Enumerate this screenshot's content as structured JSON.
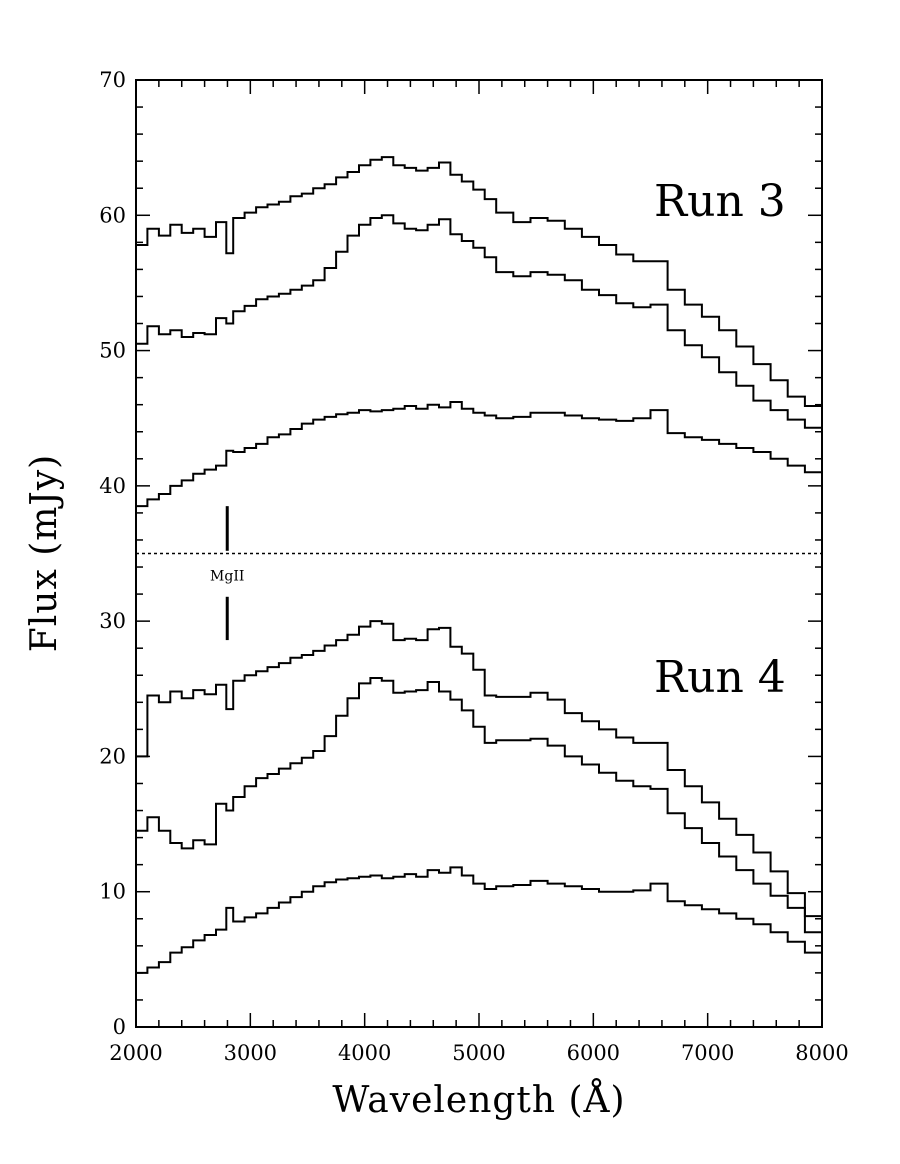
{
  "chart_data": {
    "type": "line",
    "xlabel": "Wavelength (Å)",
    "ylabel": "Flux (mJy)",
    "xlim": [
      2000,
      8000
    ],
    "ylim": [
      0,
      70
    ],
    "xticks": [
      "2000",
      "3000",
      "4000",
      "5000",
      "6000",
      "7000",
      "8000"
    ],
    "yticks": [
      "0",
      "10",
      "20",
      "30",
      "40",
      "50",
      "60",
      "70"
    ],
    "grid": false,
    "legend": "none",
    "annotations": {
      "run3": "Run 3",
      "run4": "Run 4",
      "line": "MgII",
      "line_wavelength": 2798,
      "divider_y": 35
    },
    "series": [
      {
        "x": [
          2000,
          2100,
          2200,
          2300,
          2400,
          2500,
          2600,
          2700,
          2790,
          2850,
          2950,
          3050,
          3150,
          3250,
          3350,
          3450,
          3550,
          3650,
          3750,
          3850,
          3950,
          4050,
          4150,
          4250,
          4350,
          4450,
          4550,
          4650,
          4750,
          4850,
          4950,
          5050,
          5150,
          5300,
          5450,
          5600,
          5750,
          5900,
          6050,
          6200,
          6350,
          6500,
          6650,
          6800,
          6950,
          7100,
          7250,
          7400,
          7550,
          7700,
          7850,
          8000
        ],
        "y": [
          57.8,
          59.0,
          58.5,
          59.3,
          58.7,
          59.0,
          58.4,
          59.5,
          57.2,
          59.8,
          60.2,
          60.6,
          60.8,
          61.0,
          61.4,
          61.6,
          62.0,
          62.3,
          62.8,
          63.2,
          63.7,
          64.1,
          64.3,
          63.7,
          63.5,
          63.3,
          63.5,
          63.9,
          63.0,
          62.5,
          61.9,
          61.2,
          60.2,
          59.5,
          59.8,
          59.6,
          59.0,
          58.4,
          57.8,
          57.1,
          56.6,
          56.6,
          54.5,
          53.4,
          52.5,
          51.5,
          50.3,
          49.0,
          47.8,
          46.6,
          45.9,
          45.8
        ]
      },
      {
        "x": [
          2000,
          2100,
          2200,
          2300,
          2400,
          2500,
          2600,
          2700,
          2790,
          2850,
          2950,
          3050,
          3150,
          3250,
          3350,
          3450,
          3550,
          3650,
          3750,
          3850,
          3950,
          4050,
          4150,
          4250,
          4350,
          4450,
          4550,
          4650,
          4750,
          4850,
          4950,
          5050,
          5150,
          5300,
          5450,
          5600,
          5750,
          5900,
          6050,
          6200,
          6350,
          6500,
          6650,
          6800,
          6950,
          7100,
          7250,
          7400,
          7550,
          7700,
          7850,
          8000
        ],
        "y": [
          50.5,
          51.8,
          51.2,
          51.5,
          51.0,
          51.3,
          51.2,
          52.4,
          52.0,
          52.9,
          53.3,
          53.8,
          54.0,
          54.2,
          54.5,
          54.8,
          55.2,
          56.1,
          57.3,
          58.5,
          59.3,
          59.8,
          60.0,
          59.4,
          59.0,
          58.9,
          59.3,
          59.7,
          58.6,
          58.1,
          57.6,
          56.9,
          55.8,
          55.5,
          55.8,
          55.6,
          55.2,
          54.5,
          54.1,
          53.5,
          53.2,
          53.4,
          51.5,
          50.4,
          49.5,
          48.4,
          47.4,
          46.3,
          45.6,
          44.9,
          44.3,
          44.3
        ]
      },
      {
        "x": [
          2000,
          2100,
          2200,
          2300,
          2400,
          2500,
          2600,
          2700,
          2790,
          2850,
          2950,
          3050,
          3150,
          3250,
          3350,
          3450,
          3550,
          3650,
          3750,
          3850,
          3950,
          4050,
          4150,
          4250,
          4350,
          4450,
          4550,
          4650,
          4750,
          4850,
          4950,
          5050,
          5150,
          5300,
          5450,
          5600,
          5750,
          5900,
          6050,
          6200,
          6350,
          6500,
          6650,
          6800,
          6950,
          7100,
          7250,
          7400,
          7550,
          7700,
          7850,
          8000
        ],
        "y": [
          38.5,
          39.0,
          39.4,
          40.0,
          40.4,
          40.9,
          41.2,
          41.5,
          42.6,
          42.5,
          42.8,
          43.1,
          43.6,
          43.8,
          44.2,
          44.6,
          44.9,
          45.1,
          45.3,
          45.4,
          45.6,
          45.5,
          45.6,
          45.7,
          45.9,
          45.7,
          46.0,
          45.8,
          46.2,
          45.7,
          45.4,
          45.2,
          45.0,
          45.1,
          45.4,
          45.4,
          45.2,
          45.0,
          44.9,
          44.8,
          45.0,
          45.6,
          43.9,
          43.6,
          43.4,
          43.1,
          42.8,
          42.5,
          42.0,
          41.5,
          41.0,
          41.0
        ]
      },
      {
        "x": [
          2000,
          2100,
          2200,
          2300,
          2400,
          2500,
          2600,
          2700,
          2790,
          2850,
          2950,
          3050,
          3150,
          3250,
          3350,
          3450,
          3550,
          3650,
          3750,
          3850,
          3950,
          4050,
          4150,
          4250,
          4350,
          4450,
          4550,
          4650,
          4750,
          4850,
          4950,
          5050,
          5150,
          5300,
          5450,
          5600,
          5750,
          5900,
          6050,
          6200,
          6350,
          6500,
          6650,
          6800,
          6950,
          7100,
          7250,
          7400,
          7550,
          7700,
          7850,
          8000
        ],
        "y": [
          20.0,
          24.5,
          24.0,
          24.8,
          24.3,
          24.9,
          24.6,
          25.3,
          23.5,
          25.6,
          26.0,
          26.3,
          26.6,
          26.9,
          27.3,
          27.5,
          27.8,
          28.2,
          28.6,
          29.0,
          29.6,
          30.0,
          29.8,
          28.6,
          28.7,
          28.6,
          29.4,
          29.5,
          28.1,
          27.6,
          26.4,
          24.5,
          24.4,
          24.4,
          24.7,
          24.2,
          23.2,
          22.6,
          22.0,
          21.4,
          21.0,
          21.0,
          19.0,
          17.8,
          16.6,
          15.4,
          14.2,
          12.9,
          11.5,
          9.9,
          8.2,
          8.0
        ]
      },
      {
        "x": [
          2000,
          2100,
          2200,
          2300,
          2400,
          2500,
          2600,
          2700,
          2790,
          2850,
          2950,
          3050,
          3150,
          3250,
          3350,
          3450,
          3550,
          3650,
          3750,
          3850,
          3950,
          4050,
          4150,
          4250,
          4350,
          4450,
          4550,
          4650,
          4750,
          4850,
          4950,
          5050,
          5150,
          5300,
          5450,
          5600,
          5750,
          5900,
          6050,
          6200,
          6350,
          6500,
          6650,
          6800,
          6950,
          7100,
          7250,
          7400,
          7550,
          7700,
          7850,
          8000
        ],
        "y": [
          14.5,
          15.5,
          14.5,
          13.6,
          13.2,
          13.8,
          13.5,
          16.5,
          16.0,
          17.0,
          17.8,
          18.4,
          18.7,
          19.1,
          19.5,
          19.9,
          20.4,
          21.5,
          23.0,
          24.3,
          25.4,
          25.8,
          25.6,
          24.7,
          24.8,
          24.9,
          25.5,
          24.8,
          24.2,
          23.4,
          22.2,
          21.0,
          21.2,
          21.2,
          21.3,
          20.8,
          20.0,
          19.4,
          18.8,
          18.2,
          17.8,
          17.6,
          15.8,
          14.7,
          13.6,
          12.6,
          11.6,
          10.6,
          9.7,
          8.8,
          7.0,
          7.0
        ]
      },
      {
        "x": [
          2000,
          2100,
          2200,
          2300,
          2400,
          2500,
          2600,
          2700,
          2790,
          2850,
          2950,
          3050,
          3150,
          3250,
          3350,
          3450,
          3550,
          3650,
          3750,
          3850,
          3950,
          4050,
          4150,
          4250,
          4350,
          4450,
          4550,
          4650,
          4750,
          4850,
          4950,
          5050,
          5150,
          5300,
          5450,
          5600,
          5750,
          5900,
          6050,
          6200,
          6350,
          6500,
          6650,
          6800,
          6950,
          7100,
          7250,
          7400,
          7550,
          7700,
          7850,
          8000
        ],
        "y": [
          4.0,
          4.4,
          4.8,
          5.5,
          5.9,
          6.4,
          6.8,
          7.2,
          8.8,
          7.8,
          8.1,
          8.4,
          8.8,
          9.2,
          9.6,
          10.0,
          10.4,
          10.7,
          10.9,
          11.0,
          11.1,
          11.2,
          11.0,
          11.1,
          11.3,
          11.1,
          11.6,
          11.4,
          11.8,
          11.2,
          10.6,
          10.2,
          10.4,
          10.5,
          10.8,
          10.6,
          10.4,
          10.2,
          10.0,
          10.0,
          10.1,
          10.6,
          9.3,
          9.0,
          8.7,
          8.4,
          8.0,
          7.6,
          7.0,
          6.3,
          5.5,
          4.5
        ]
      }
    ]
  }
}
